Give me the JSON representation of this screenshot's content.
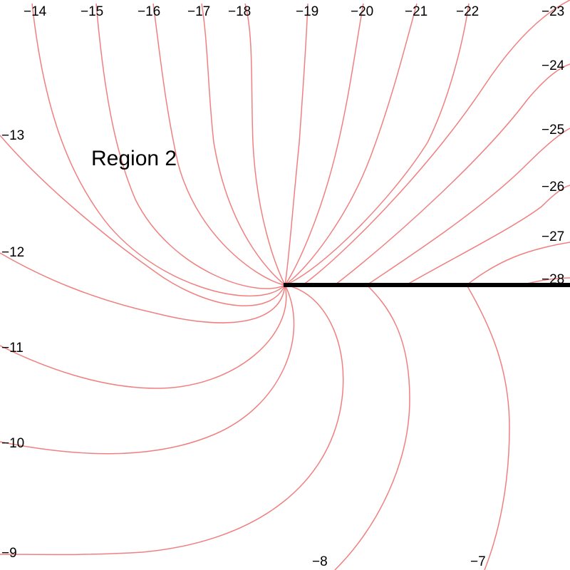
{
  "colors": {
    "curve": "#f08080",
    "cut": "#000000",
    "text": "#000000"
  },
  "region_label": "Region 2",
  "labels": {
    "c14": "−14",
    "c15": "−15",
    "c16": "−16",
    "c17": "−17",
    "c18": "−18",
    "c19": "−19",
    "c20": "−20",
    "c21": "−21",
    "c22": "−22",
    "c23": "−23",
    "c24": "−24",
    "c25": "−25",
    "c26": "−26",
    "c27": "−27",
    "c28": "−28",
    "c13": "−13",
    "c12": "−12",
    "c11": "−11",
    "c10": "−10",
    "c9": "−9",
    "c8": "−8",
    "c7": "−7"
  }
}
